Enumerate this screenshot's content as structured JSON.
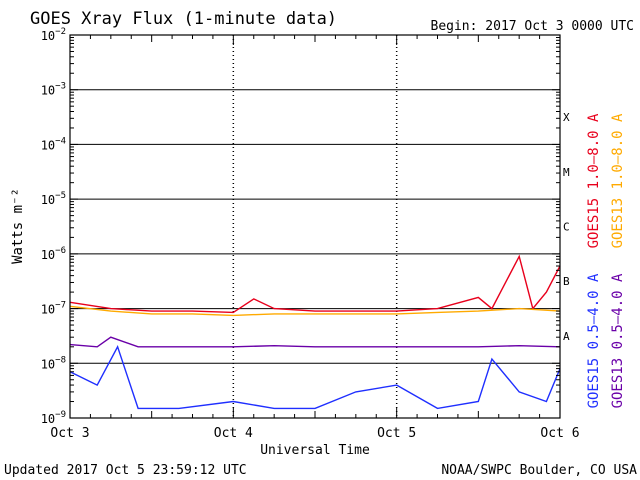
{
  "header": {
    "title": "GOES Xray Flux (1-minute data)",
    "begin": "Begin:  2017 Oct 3 0000 UTC"
  },
  "footer": {
    "updated": "Updated 2017 Oct  5 23:59:12 UTC",
    "credit": "NOAA/SWPC Boulder, CO USA"
  },
  "chart_data": {
    "type": "line",
    "title": "GOES Xray Flux (1-minute data)",
    "xlabel": "Universal Time",
    "ylabel": "Watts m⁻²",
    "yscale": "log",
    "ylim": [
      1e-09,
      0.01
    ],
    "xlim": [
      "2017-10-03 00:00",
      "2017-10-06 00:00"
    ],
    "x_ticks": [
      {
        "value": "2017-10-03",
        "label": "Oct 3"
      },
      {
        "value": "2017-10-04",
        "label": "Oct 4"
      },
      {
        "value": "2017-10-05",
        "label": "Oct 5"
      },
      {
        "value": "2017-10-06",
        "label": "Oct 6"
      }
    ],
    "y_ticks": [
      {
        "value": 1e-09,
        "base": "10",
        "exp": "−9"
      },
      {
        "value": 1e-08,
        "base": "10",
        "exp": "−8"
      },
      {
        "value": 1e-07,
        "base": "10",
        "exp": "−7"
      },
      {
        "value": 1e-06,
        "base": "10",
        "exp": "−6"
      },
      {
        "value": 1e-05,
        "base": "10",
        "exp": "−5"
      },
      {
        "value": 0.0001,
        "base": "10",
        "exp": "−4"
      },
      {
        "value": 0.001,
        "base": "10",
        "exp": "−3"
      },
      {
        "value": 0.01,
        "base": "10",
        "exp": "−2"
      }
    ],
    "flare_classes": [
      {
        "label": "A",
        "value": 1e-08
      },
      {
        "label": "B",
        "value": 1e-07
      },
      {
        "label": "C",
        "value": 1e-06
      },
      {
        "label": "M",
        "value": 1e-05
      },
      {
        "label": "X",
        "value": 0.0001
      }
    ],
    "grid": true,
    "legend_position": "right",
    "series": [
      {
        "name": "GOES15 1.0–8.0 A",
        "color": "#e8001c",
        "x": [
          "2017-10-03 00:00",
          "2017-10-03 06:00",
          "2017-10-03 12:00",
          "2017-10-03 18:00",
          "2017-10-04 00:00",
          "2017-10-04 03:00",
          "2017-10-04 06:00",
          "2017-10-04 12:00",
          "2017-10-04 18:00",
          "2017-10-05 00:00",
          "2017-10-05 06:00",
          "2017-10-05 12:00",
          "2017-10-05 14:00",
          "2017-10-05 18:00",
          "2017-10-05 20:00",
          "2017-10-05 22:00",
          "2017-10-06 00:00"
        ],
        "y": [
          1.3e-07,
          1e-07,
          9e-08,
          9e-08,
          8.5e-08,
          1.5e-07,
          1e-07,
          9e-08,
          9e-08,
          9e-08,
          1e-07,
          1.6e-07,
          1e-07,
          9e-07,
          1e-07,
          2e-07,
          6e-07
        ]
      },
      {
        "name": "GOES13 1.0–8.0 A",
        "color": "#ffaa00",
        "x": [
          "2017-10-03 00:00",
          "2017-10-03 06:00",
          "2017-10-03 12:00",
          "2017-10-03 18:00",
          "2017-10-04 00:00",
          "2017-10-04 06:00",
          "2017-10-04 12:00",
          "2017-10-04 18:00",
          "2017-10-05 00:00",
          "2017-10-05 06:00",
          "2017-10-05 12:00",
          "2017-10-05 18:00",
          "2017-10-06 00:00"
        ],
        "y": [
          1.1e-07,
          9e-08,
          8e-08,
          8e-08,
          7.5e-08,
          8e-08,
          8e-08,
          8e-08,
          8e-08,
          8.5e-08,
          9e-08,
          1e-07,
          9e-08
        ]
      },
      {
        "name": "GOES15 0.5–4.0 A",
        "color": "#1f2fff",
        "x": [
          "2017-10-03 00:00",
          "2017-10-03 04:00",
          "2017-10-03 07:00",
          "2017-10-03 10:00",
          "2017-10-03 16:00",
          "2017-10-04 00:00",
          "2017-10-04 06:00",
          "2017-10-04 12:00",
          "2017-10-04 18:00",
          "2017-10-05 00:00",
          "2017-10-05 06:00",
          "2017-10-05 12:00",
          "2017-10-05 14:00",
          "2017-10-05 18:00",
          "2017-10-05 22:00",
          "2017-10-06 00:00"
        ],
        "y": [
          7e-09,
          4e-09,
          2e-08,
          1.5e-09,
          1.5e-09,
          2e-09,
          1.5e-09,
          1.5e-09,
          3e-09,
          4e-09,
          1.5e-09,
          2e-09,
          1.2e-08,
          3e-09,
          2e-09,
          8e-09
        ]
      },
      {
        "name": "GOES13 0.5–4.0 A",
        "color": "#6a00a8",
        "x": [
          "2017-10-03 00:00",
          "2017-10-03 04:00",
          "2017-10-03 06:00",
          "2017-10-03 10:00",
          "2017-10-04 00:00",
          "2017-10-04 06:00",
          "2017-10-04 12:00",
          "2017-10-05 00:00",
          "2017-10-05 06:00",
          "2017-10-05 12:00",
          "2017-10-05 18:00",
          "2017-10-06 00:00"
        ],
        "y": [
          2.2e-08,
          2e-08,
          3e-08,
          2e-08,
          2e-08,
          2.1e-08,
          2e-08,
          2e-08,
          2e-08,
          2e-08,
          2.1e-08,
          2e-08
        ]
      }
    ]
  }
}
